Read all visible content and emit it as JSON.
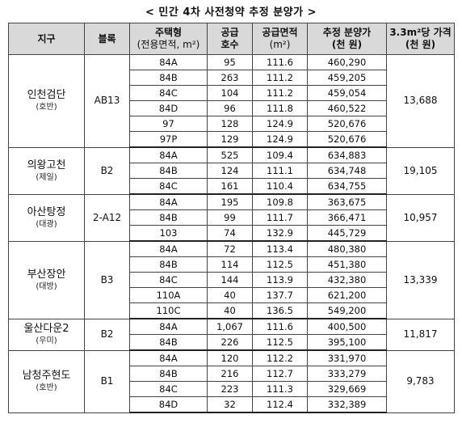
{
  "title": "< 민간 4차 사전청약 추정 분양가 >",
  "headers": {
    "district": "지구",
    "block": "블록",
    "type_line1": "주택형",
    "type_line2": "(전용면적, m²)",
    "supply_line1": "공급",
    "supply_line2": "호수",
    "area_line1": "공급면적",
    "area_line2": "(m²)",
    "price_line1": "추정 분양가",
    "price_line2": "(천 원)",
    "per33_line1": "3.3m²당 가격",
    "per33_line2": "(천 원)"
  },
  "groups": [
    {
      "district": "인천검단",
      "builder": "(호반)",
      "block": "AB13",
      "per33": "13,688",
      "rows": [
        {
          "type": "84A",
          "units": "95",
          "area": "111.6",
          "price": "460,290"
        },
        {
          "type": "84B",
          "units": "263",
          "area": "111.2",
          "price": "459,205"
        },
        {
          "type": "84C",
          "units": "104",
          "area": "111.2",
          "price": "459,054"
        },
        {
          "type": "84D",
          "units": "96",
          "area": "111.8",
          "price": "460,522"
        },
        {
          "type": "97",
          "units": "128",
          "area": "124.9",
          "price": "520,676"
        },
        {
          "type": "97P",
          "units": "129",
          "area": "124.9",
          "price": "520,676"
        }
      ]
    },
    {
      "district": "의왕고천",
      "builder": "(제일)",
      "block": "B2",
      "per33": "19,105",
      "rows": [
        {
          "type": "84A",
          "units": "525",
          "area": "109.4",
          "price": "634,883"
        },
        {
          "type": "84B",
          "units": "124",
          "area": "111.1",
          "price": "634,748"
        },
        {
          "type": "84C",
          "units": "161",
          "area": "110.4",
          "price": "634,755"
        }
      ]
    },
    {
      "district": "아산탕정",
      "builder": "(대광)",
      "block": "2-A12",
      "per33": "10,957",
      "rows": [
        {
          "type": "84A",
          "units": "195",
          "area": "109.8",
          "price": "363,675"
        },
        {
          "type": "84B",
          "units": "99",
          "area": "111.7",
          "price": "366,471"
        },
        {
          "type": "103",
          "units": "74",
          "area": "132.9",
          "price": "445,729"
        }
      ]
    },
    {
      "district": "부산장안",
      "builder": "(대방)",
      "block": "B3",
      "per33": "13,339",
      "rows": [
        {
          "type": "84A",
          "units": "72",
          "area": "113.4",
          "price": "480,380"
        },
        {
          "type": "84B",
          "units": "114",
          "area": "112.5",
          "price": "451,380"
        },
        {
          "type": "84C",
          "units": "144",
          "area": "113.9",
          "price": "432,380"
        },
        {
          "type": "110A",
          "units": "40",
          "area": "137.7",
          "price": "621,200"
        },
        {
          "type": "110C",
          "units": "40",
          "area": "136.5",
          "price": "549,200"
        }
      ]
    },
    {
      "district": "울산다운2",
      "builder": "(우미)",
      "block": "B2",
      "per33": "11,817",
      "rows": [
        {
          "type": "84A",
          "units": "1,067",
          "area": "111.6",
          "price": "400,500"
        },
        {
          "type": "84B",
          "units": "226",
          "area": "112.5",
          "price": "395,100"
        }
      ]
    },
    {
      "district": "남청주현도",
      "builder": "(호반)",
      "block": "B1",
      "per33": "9,783",
      "rows": [
        {
          "type": "84A",
          "units": "120",
          "area": "112.2",
          "price": "331,970"
        },
        {
          "type": "84B",
          "units": "216",
          "area": "112.7",
          "price": "333,279"
        },
        {
          "type": "84C",
          "units": "223",
          "area": "111.3",
          "price": "329,669"
        },
        {
          "type": "84D",
          "units": "32",
          "area": "112.4",
          "price": "332,389"
        }
      ]
    }
  ]
}
